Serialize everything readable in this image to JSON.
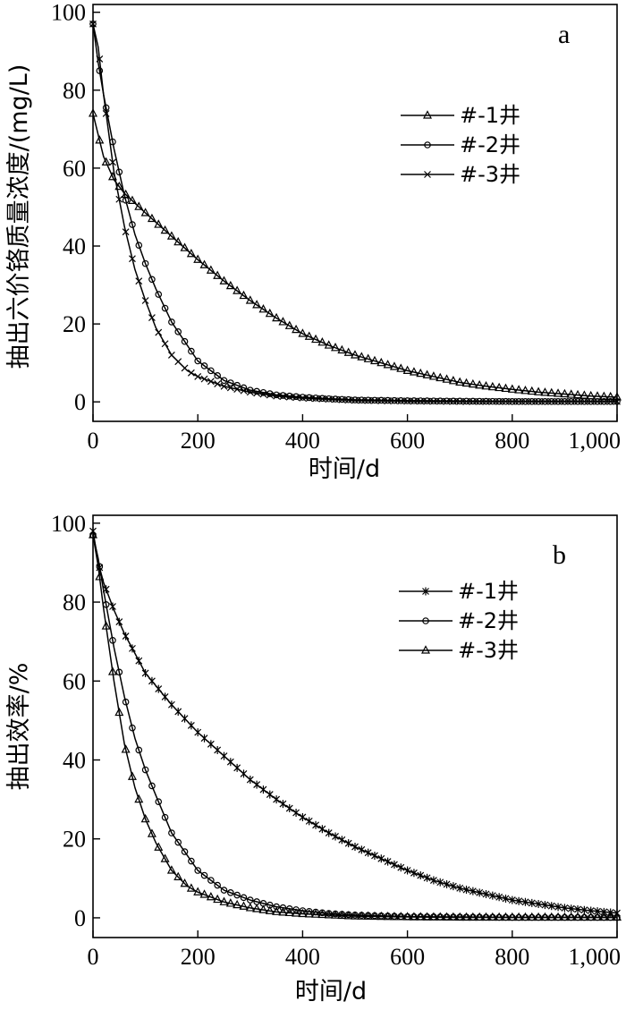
{
  "chart_data": [
    {
      "type": "line",
      "panel_label": "a",
      "xlabel": "时间/d",
      "ylabel": "抽出六价铬质量浓度/(mg/L)",
      "xlim": [
        0,
        1000
      ],
      "ylim": [
        -5,
        102
      ],
      "xticks": [
        0,
        200,
        400,
        600,
        800,
        1000
      ],
      "xtick_labels": [
        "0",
        "200",
        "400",
        "600",
        "800",
        "1,000"
      ],
      "yticks": [
        0,
        20,
        40,
        60,
        80,
        100
      ],
      "ytick_labels": [
        "0",
        "20",
        "40",
        "60",
        "80",
        "100"
      ],
      "grid": false,
      "legend_position": "top-right",
      "series": [
        {
          "name": "#-1井",
          "marker": "triangle",
          "x": [
            0,
            20,
            40,
            60,
            80,
            100,
            150,
            200,
            250,
            300,
            350,
            400,
            450,
            500,
            550,
            600,
            650,
            700,
            750,
            800,
            850,
            900,
            950,
            1000
          ],
          "y": [
            74,
            63,
            57,
            53.5,
            51,
            48.5,
            42.5,
            36.5,
            31,
            26,
            21.5,
            17.5,
            14.5,
            12,
            10,
            8,
            6.5,
            5,
            4,
            3.2,
            2.5,
            2,
            1.5,
            1.2
          ]
        },
        {
          "name": "#-2井",
          "marker": "circle",
          "x": [
            0,
            10,
            20,
            40,
            60,
            80,
            100,
            120,
            150,
            200,
            250,
            300,
            350,
            400,
            450,
            500,
            600,
            700,
            800,
            900,
            1000
          ],
          "y": [
            97,
            87,
            79,
            65,
            53,
            43,
            35.5,
            29,
            20.5,
            10.5,
            5.5,
            3,
            1.8,
            1.2,
            0.8,
            0.5,
            0.3,
            0.2,
            0.1,
            0.1,
            0.1
          ]
        },
        {
          "name": "#-3井",
          "marker": "cross",
          "x": [
            0,
            10,
            20,
            40,
            60,
            80,
            100,
            120,
            150,
            180,
            200,
            250,
            300,
            350,
            400,
            500,
            600,
            700,
            800,
            900,
            1000
          ],
          "y": [
            97,
            91,
            79,
            59,
            45,
            34,
            26,
            19,
            12,
            8,
            6.5,
            4,
            2.5,
            1.5,
            1,
            0.4,
            0.2,
            0.1,
            0.1,
            0.1,
            0.1
          ]
        }
      ]
    },
    {
      "type": "line",
      "panel_label": "b",
      "xlabel": "时间/d",
      "ylabel": "抽出效率/%",
      "xlim": [
        0,
        1000
      ],
      "ylim": [
        -5,
        102
      ],
      "xticks": [
        0,
        200,
        400,
        600,
        800,
        1000
      ],
      "xtick_labels": [
        "0",
        "200",
        "400",
        "600",
        "800",
        "1,000"
      ],
      "yticks": [
        0,
        20,
        40,
        60,
        80,
        100
      ],
      "ytick_labels": [
        "0",
        "20",
        "40",
        "60",
        "80",
        "100"
      ],
      "grid": false,
      "legend_position": "top-right",
      "series": [
        {
          "name": "#-1井",
          "marker": "asterisk",
          "x": [
            0,
            10,
            20,
            40,
            60,
            80,
            100,
            150,
            200,
            250,
            300,
            350,
            400,
            450,
            500,
            550,
            600,
            650,
            700,
            750,
            800,
            850,
            900,
            950,
            1000
          ],
          "y": [
            98,
            90,
            85,
            78,
            72,
            67,
            62,
            54,
            47,
            41,
            35,
            30,
            25.5,
            21.5,
            18,
            15,
            12,
            9.5,
            7.5,
            6,
            4.5,
            3.5,
            2.5,
            1.8,
            1.2
          ]
        },
        {
          "name": "#-2井",
          "marker": "circle",
          "x": [
            0,
            10,
            20,
            40,
            60,
            80,
            100,
            120,
            150,
            200,
            250,
            300,
            350,
            400,
            450,
            500,
            600,
            700,
            800,
            900,
            1000
          ],
          "y": [
            97,
            91,
            83,
            68.5,
            56,
            45.5,
            37.5,
            31,
            21.5,
            12,
            7,
            4.5,
            2.8,
            1.8,
            1.1,
            0.7,
            0.3,
            0.2,
            0.1,
            0.1,
            0.1
          ]
        },
        {
          "name": "#-3井",
          "marker": "triangle",
          "x": [
            0,
            10,
            20,
            40,
            60,
            80,
            100,
            120,
            150,
            180,
            200,
            250,
            300,
            350,
            400,
            500,
            600,
            700,
            800,
            900,
            1000
          ],
          "y": [
            97,
            89,
            78.5,
            60,
            44,
            33,
            25,
            19,
            12,
            8,
            6.5,
            4,
            2.5,
            1.5,
            1,
            0.4,
            0.2,
            0.1,
            0.1,
            0.1,
            0.1
          ]
        }
      ]
    }
  ]
}
